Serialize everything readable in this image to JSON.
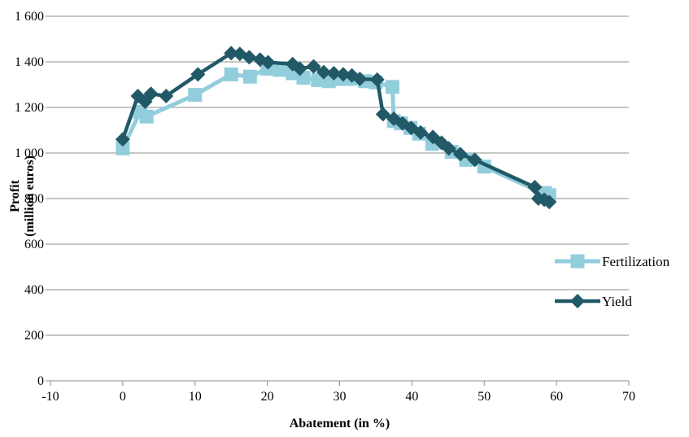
{
  "chart_data": {
    "type": "line",
    "xlabel": "Abatement (in %)",
    "ylabel_lines": [
      "Profit",
      "(million euros)"
    ],
    "xlim": [
      -10,
      70
    ],
    "ylim": [
      0,
      1600
    ],
    "x_ticks": [
      -10,
      0,
      10,
      20,
      30,
      40,
      50,
      60,
      70
    ],
    "y_ticks": [
      0,
      200,
      400,
      600,
      800,
      1000,
      1200,
      1400,
      1600
    ],
    "x_tick_labels": [
      "-10",
      "0",
      "10",
      "20",
      "30",
      "40",
      "50",
      "60",
      "70"
    ],
    "y_tick_labels": [
      "0",
      "200",
      "400",
      "600",
      "800",
      "1 000",
      "1 200",
      "1 400",
      "1 600"
    ],
    "grid": "horizontal",
    "legend_position": "right",
    "series": [
      {
        "name": "Fertilization",
        "color": "#92cddc",
        "marker": "square",
        "points": [
          [
            0,
            1020
          ],
          [
            2.4,
            1180
          ],
          [
            3.3,
            1160
          ],
          [
            10,
            1255
          ],
          [
            15,
            1345
          ],
          [
            17.6,
            1335
          ],
          [
            20,
            1370
          ],
          [
            21.7,
            1365
          ],
          [
            23.5,
            1350
          ],
          [
            25,
            1330
          ],
          [
            27,
            1320
          ],
          [
            28.5,
            1315
          ],
          [
            30,
            1325
          ],
          [
            31.5,
            1325
          ],
          [
            33.5,
            1315
          ],
          [
            35,
            1310
          ],
          [
            37.3,
            1290
          ],
          [
            37.5,
            1140
          ],
          [
            38.5,
            1130
          ],
          [
            39.8,
            1110
          ],
          [
            41,
            1085
          ],
          [
            42.8,
            1040
          ],
          [
            45.5,
            1005
          ],
          [
            47.5,
            970
          ],
          [
            50,
            940
          ],
          [
            58,
            825
          ],
          [
            58.4,
            825
          ],
          [
            59,
            815
          ]
        ]
      },
      {
        "name": "Yield",
        "color": "#215967",
        "marker": "diamond",
        "points": [
          [
            0,
            1060
          ],
          [
            2.1,
            1250
          ],
          [
            3.1,
            1225
          ],
          [
            3.9,
            1260
          ],
          [
            6,
            1250
          ],
          [
            10.4,
            1345
          ],
          [
            15,
            1438
          ],
          [
            16.2,
            1435
          ],
          [
            17.5,
            1420
          ],
          [
            19,
            1410
          ],
          [
            20.1,
            1398
          ],
          [
            23.5,
            1390
          ],
          [
            24.5,
            1370
          ],
          [
            26.4,
            1380
          ],
          [
            27.8,
            1355
          ],
          [
            29.2,
            1350
          ],
          [
            30.5,
            1345
          ],
          [
            31.7,
            1340
          ],
          [
            32.8,
            1325
          ],
          [
            35.2,
            1322
          ],
          [
            36,
            1170
          ],
          [
            37.5,
            1150
          ],
          [
            38.7,
            1130
          ],
          [
            39.9,
            1110
          ],
          [
            41.2,
            1090
          ],
          [
            42.9,
            1070
          ],
          [
            44.1,
            1045
          ],
          [
            45.1,
            1020
          ],
          [
            46.7,
            995
          ],
          [
            48.7,
            970
          ],
          [
            57,
            850
          ],
          [
            57.5,
            800
          ],
          [
            58.3,
            795
          ],
          [
            59,
            785
          ]
        ]
      }
    ]
  }
}
